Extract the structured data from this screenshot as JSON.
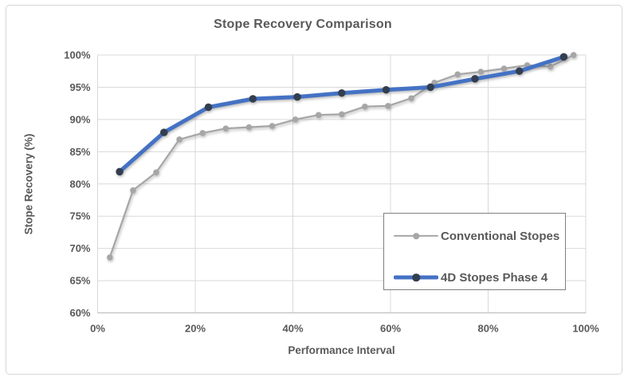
{
  "chart_data": {
    "type": "line",
    "title": "Stope Recovery Comparison",
    "xlabel": "Performance Interval",
    "ylabel": "Stope Recovery (%)",
    "xlim": [
      0,
      100
    ],
    "ylim": [
      60,
      100
    ],
    "grid": true,
    "legend_position": "inside-right",
    "x_ticks": {
      "values": [
        0,
        20,
        40,
        60,
        80,
        100
      ],
      "labels": [
        "0%",
        "20%",
        "40%",
        "60%",
        "80%",
        "100%"
      ]
    },
    "y_ticks": {
      "values": [
        60,
        65,
        70,
        75,
        80,
        85,
        90,
        95,
        100
      ],
      "labels": [
        "60%",
        "65%",
        "70%",
        "75%",
        "80%",
        "85%",
        "90%",
        "95%",
        "100%"
      ]
    },
    "series": [
      {
        "name": "Conventional Stopes",
        "color": "#a6a6a6",
        "marker_color": "#a6a6a6",
        "line_width": 2.2,
        "marker_size": 7.5,
        "points": [
          [
            2.5,
            68.6
          ],
          [
            7.25,
            79.0
          ],
          [
            12.0,
            81.8
          ],
          [
            16.75,
            86.9
          ],
          [
            21.5,
            87.9
          ],
          [
            26.25,
            88.6
          ],
          [
            31.0,
            88.8
          ],
          [
            35.75,
            89.0
          ],
          [
            40.5,
            90.0
          ],
          [
            45.25,
            90.7
          ],
          [
            50.0,
            90.8
          ],
          [
            54.75,
            92.0
          ],
          [
            59.5,
            92.1
          ],
          [
            64.25,
            93.3
          ],
          [
            69.0,
            95.7
          ],
          [
            73.75,
            97.0
          ],
          [
            78.5,
            97.4
          ],
          [
            83.25,
            97.9
          ],
          [
            88.0,
            98.4
          ],
          [
            92.75,
            98.2
          ],
          [
            97.5,
            100.0
          ]
        ]
      },
      {
        "name": "4D Stopes Phase 4",
        "color": "#4472c4",
        "marker_color": "#333f50",
        "line_width": 5,
        "marker_size": 9.5,
        "points": [
          [
            4.5,
            81.9
          ],
          [
            13.6,
            88.0
          ],
          [
            22.7,
            91.9
          ],
          [
            31.8,
            93.2
          ],
          [
            40.9,
            93.5
          ],
          [
            50.0,
            94.1
          ],
          [
            59.1,
            94.6
          ],
          [
            68.2,
            95.0
          ],
          [
            77.3,
            96.3
          ],
          [
            86.4,
            97.5
          ],
          [
            95.5,
            99.7
          ]
        ]
      }
    ]
  },
  "colors": {
    "grid": "#d9d9d9",
    "axis_line": "#bfbfbf",
    "tick_text": "#595959",
    "title_text": "#595959",
    "legend_border": "#7f7f7f",
    "frame_border": "#d6d6d6"
  }
}
